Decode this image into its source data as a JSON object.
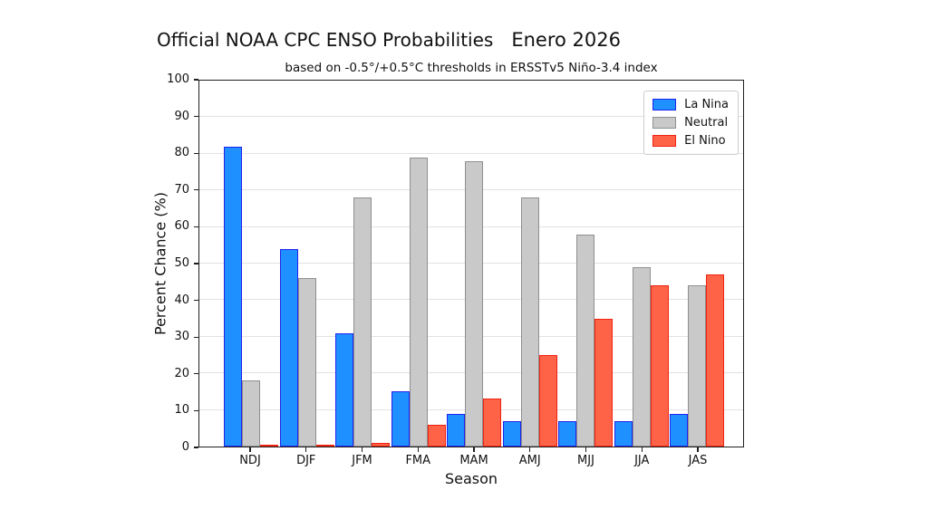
{
  "page": {
    "background": "#ffffff",
    "text_color": "#111111",
    "spine_color": "#1f1f1f",
    "gridline_color": "#e2e2e2"
  },
  "chart_data": {
    "type": "bar",
    "title": "Official NOAA CPC ENSO Probabilities",
    "title_right": "Enero 2026",
    "subtitle": "based on -0.5°/+0.5°C thresholds in ERSSTv5 Niño-3.4 index",
    "xlabel": "Season",
    "ylabel": "Percent Chance (%)",
    "ylim": [
      0,
      100
    ],
    "yticks": [
      0,
      10,
      20,
      30,
      40,
      50,
      60,
      70,
      80,
      90,
      100
    ],
    "grid": true,
    "legend_position": "upper right",
    "categories": [
      "NDJ",
      "DJF",
      "JFM",
      "FMA",
      "MAM",
      "AMJ",
      "MJJ",
      "JJA",
      "JAS"
    ],
    "series": [
      {
        "name": "La Nina",
        "fill": "#1e90ff",
        "edge": "#2222ee",
        "values": [
          82,
          54,
          31,
          15,
          9,
          7,
          7,
          7,
          9
        ]
      },
      {
        "name": "Neutral",
        "fill": "#c9c9c9",
        "edge": "#8f8f8f",
        "values": [
          18,
          46,
          68,
          79,
          78,
          68,
          58,
          49,
          44
        ]
      },
      {
        "name": "El Nino",
        "fill": "#ff6347",
        "edge": "#ee2211",
        "values": [
          0,
          0,
          1,
          6,
          13,
          25,
          35,
          44,
          47
        ]
      }
    ]
  }
}
